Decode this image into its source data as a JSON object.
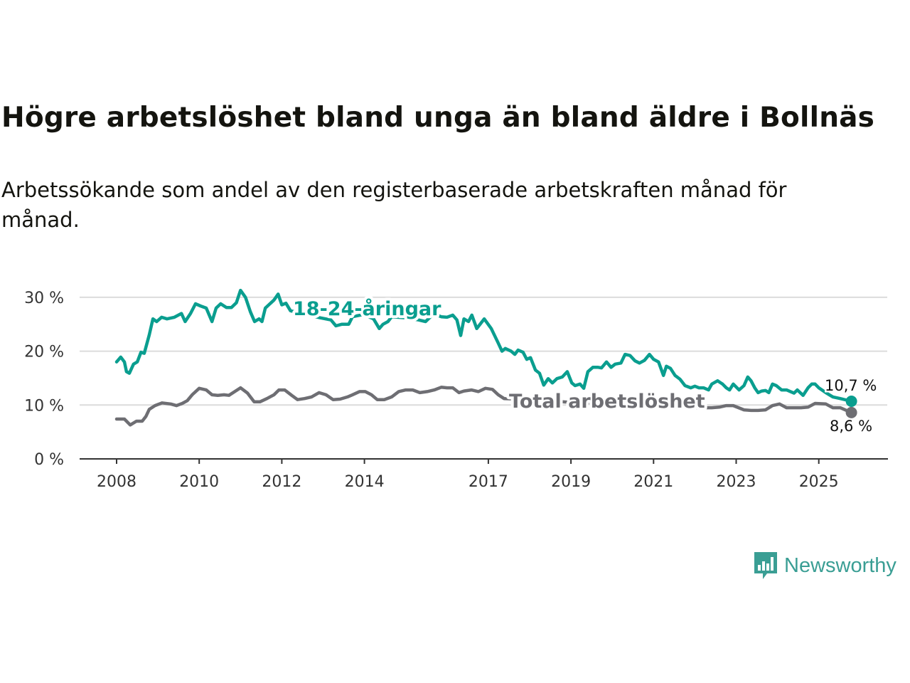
{
  "title": "Högre arbetslöshet bland unga än bland äldre i Bollnäs",
  "subtitle": "Arbetssökande som andel av den registerbaserade arbetskraften månad för månad.",
  "logo": {
    "text": "Newsworthy"
  },
  "chart_data": {
    "type": "line",
    "title": "Högre arbetslöshet bland unga än bland äldre i Bollnäs",
    "xlabel": "",
    "ylabel": "",
    "xlim": [
      2008,
      2025.8
    ],
    "ylim": [
      0,
      30
    ],
    "y_ticks": [
      0,
      10,
      20,
      30
    ],
    "y_tick_labels": [
      "0 %",
      "10 %",
      "20 %",
      "30 %"
    ],
    "x_ticks": [
      2008,
      2010,
      2012,
      2014,
      2017,
      2019,
      2021,
      2023,
      2025
    ],
    "x_tick_labels": [
      "2008",
      "2010",
      "2012",
      "2014",
      "2017",
      "2019",
      "2021",
      "2023",
      "2025"
    ],
    "grid": true,
    "colors": {
      "youth": "#0a9e8f",
      "total": "#6e6e73"
    },
    "series": [
      {
        "name": "18-24-åringar",
        "end_label": "10,7 %",
        "x": [
          2008,
          2008.1,
          2008.19,
          2008.24,
          2008.31,
          2008.41,
          2008.5,
          2008.59,
          2008.67,
          2008.79,
          2008.88,
          2008.97,
          2009.09,
          2009.22,
          2009.4,
          2009.57,
          2009.66,
          2009.79,
          2009.91,
          2010.03,
          2010.17,
          2010.31,
          2010.41,
          2010.52,
          2010.66,
          2010.78,
          2010.9,
          2011.0,
          2011.12,
          2011.24,
          2011.34,
          2011.45,
          2011.52,
          2011.6,
          2011.81,
          2011.91,
          2012.0,
          2012.1,
          2012.21,
          2012.59,
          2012.93,
          2013.19,
          2013.31,
          2013.45,
          2013.62,
          2013.71,
          2013.97,
          2014.22,
          2014.36,
          2014.45,
          2014.57,
          2014.66,
          2015.0,
          2015.31,
          2015.48,
          2015.6,
          2015.72,
          2015.86,
          2016.0,
          2016.14,
          2016.24,
          2016.33,
          2016.41,
          2016.52,
          2016.6,
          2016.72,
          2016.9,
          2017.07,
          2017.24,
          2017.33,
          2017.41,
          2017.55,
          2017.64,
          2017.72,
          2017.84,
          2017.93,
          2018.02,
          2018.14,
          2018.24,
          2018.34,
          2018.45,
          2018.55,
          2018.66,
          2018.79,
          2018.91,
          2019.02,
          2019.1,
          2019.22,
          2019.31,
          2019.41,
          2019.53,
          2019.66,
          2019.74,
          2019.86,
          2019.97,
          2020.07,
          2020.21,
          2020.31,
          2020.43,
          2020.55,
          2020.66,
          2020.78,
          2020.9,
          2021.0,
          2021.12,
          2021.24,
          2021.31,
          2021.41,
          2021.52,
          2021.64,
          2021.76,
          2021.9,
          2022.0,
          2022.1,
          2022.21,
          2022.33,
          2022.41,
          2022.55,
          2022.67,
          2022.76,
          2022.84,
          2022.93,
          2023.07,
          2023.19,
          2023.28,
          2023.36,
          2023.45,
          2023.53,
          2023.62,
          2023.71,
          2023.79,
          2023.88,
          2023.97,
          2024.1,
          2024.22,
          2024.4,
          2024.48,
          2024.62,
          2024.74,
          2024.83,
          2024.91,
          2025.0,
          2025.17,
          2025.34,
          2025.52,
          2025.79
        ],
        "y": [
          18.0,
          18.9,
          18.0,
          16.2,
          15.9,
          17.6,
          18.0,
          19.8,
          19.6,
          23.0,
          26.0,
          25.5,
          26.3,
          26.0,
          26.3,
          27.0,
          25.5,
          27.0,
          28.8,
          28.4,
          28.0,
          25.5,
          28.0,
          28.8,
          28.1,
          28.1,
          29.0,
          31.3,
          30.0,
          27.3,
          25.5,
          26.0,
          25.5,
          28.0,
          29.5,
          30.6,
          28.6,
          28.9,
          27.5,
          26.8,
          26.2,
          25.8,
          24.7,
          25.0,
          25.0,
          26.4,
          26.8,
          26.0,
          24.2,
          25.0,
          25.5,
          26.4,
          26.2,
          25.8,
          25.5,
          26.4,
          26.8,
          26.4,
          26.3,
          26.7,
          25.8,
          22.9,
          26.0,
          25.5,
          26.7,
          24.2,
          26.0,
          24.2,
          21.5,
          20.0,
          20.5,
          20.0,
          19.4,
          20.2,
          19.8,
          18.5,
          18.8,
          16.5,
          15.9,
          13.7,
          14.9,
          14.1,
          14.9,
          15.2,
          16.2,
          14.1,
          13.6,
          13.9,
          13.1,
          16.2,
          17.0,
          17.0,
          16.9,
          18.0,
          17.0,
          17.6,
          17.8,
          19.4,
          19.2,
          18.2,
          17.8,
          18.3,
          19.4,
          18.5,
          18.0,
          15.5,
          17.2,
          16.8,
          15.5,
          14.8,
          13.6,
          13.2,
          13.5,
          13.2,
          13.2,
          12.8,
          13.9,
          14.5,
          13.9,
          13.2,
          12.8,
          13.9,
          12.8,
          13.6,
          15.2,
          14.5,
          13.2,
          12.3,
          12.6,
          12.7,
          12.3,
          13.9,
          13.6,
          12.8,
          12.8,
          12.2,
          12.8,
          11.8,
          13.2,
          13.9,
          13.9,
          13.2,
          12.3,
          11.5,
          11.2,
          10.7
        ]
      },
      {
        "name": "Total arbetslöshet",
        "end_label": "8,6 %",
        "x": [
          2008,
          2008.19,
          2008.33,
          2008.48,
          2008.62,
          2008.71,
          2008.79,
          2008.93,
          2009.1,
          2009.31,
          2009.45,
          2009.59,
          2009.71,
          2009.83,
          2010.0,
          2010.17,
          2010.31,
          2010.45,
          2010.6,
          2010.72,
          2010.86,
          2011.0,
          2011.17,
          2011.33,
          2011.47,
          2011.64,
          2011.81,
          2011.93,
          2012.07,
          2012.24,
          2012.38,
          2012.55,
          2012.72,
          2012.9,
          2013.07,
          2013.24,
          2013.41,
          2013.59,
          2013.71,
          2013.88,
          2014.02,
          2014.17,
          2014.31,
          2014.48,
          2014.66,
          2014.83,
          2015.0,
          2015.17,
          2015.34,
          2015.52,
          2015.69,
          2015.86,
          2016.0,
          2016.14,
          2016.29,
          2016.41,
          2016.59,
          2016.76,
          2016.93,
          2017.1,
          2017.24,
          2017.38,
          2018.1,
          2018.97,
          2019.83,
          2020.69,
          2021.55,
          2022.16,
          2022.41,
          2022.59,
          2022.76,
          2022.93,
          2023.19,
          2023.36,
          2023.53,
          2023.71,
          2023.88,
          2024.05,
          2024.22,
          2024.4,
          2024.57,
          2024.74,
          2024.91,
          2025.17,
          2025.34,
          2025.52,
          2025.79
        ],
        "y": [
          7.4,
          7.4,
          6.3,
          7.0,
          7.0,
          7.9,
          9.2,
          9.9,
          10.4,
          10.2,
          9.9,
          10.3,
          10.8,
          11.9,
          13.1,
          12.8,
          11.9,
          11.8,
          11.9,
          11.8,
          12.5,
          13.2,
          12.2,
          10.6,
          10.6,
          11.2,
          11.9,
          12.8,
          12.8,
          11.8,
          11.0,
          11.2,
          11.5,
          12.3,
          11.9,
          11.0,
          11.1,
          11.5,
          11.9,
          12.5,
          12.5,
          11.9,
          11.0,
          11.0,
          11.5,
          12.5,
          12.8,
          12.8,
          12.3,
          12.5,
          12.8,
          13.3,
          13.2,
          13.2,
          12.3,
          12.6,
          12.8,
          12.5,
          13.1,
          12.9,
          11.9,
          11.2,
          11.0,
          10.5,
          10.2,
          10.0,
          9.6,
          9.5,
          9.5,
          9.6,
          9.9,
          9.9,
          9.1,
          9.0,
          9.0,
          9.1,
          9.9,
          10.2,
          9.5,
          9.5,
          9.5,
          9.6,
          10.3,
          10.2,
          9.5,
          9.5,
          8.6
        ]
      }
    ]
  }
}
